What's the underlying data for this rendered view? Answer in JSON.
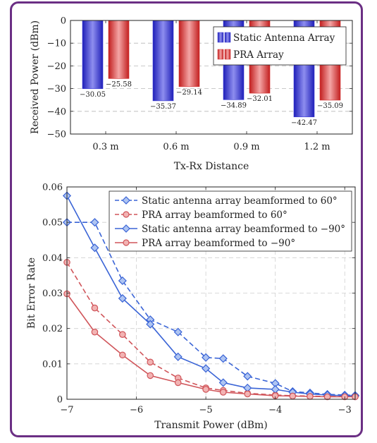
{
  "chart_data": [
    {
      "type": "bar",
      "categories": [
        "0.3 m",
        "0.6 m",
        "0.9 m",
        "1.2 m"
      ],
      "series": [
        {
          "name": "Static Antenna Array",
          "values": [
            -30.05,
            -35.37,
            -34.89,
            -42.47
          ],
          "labels": [
            "−30.05",
            "−35.37",
            "−34.89",
            "−42.47"
          ],
          "color": "#3b3bd6"
        },
        {
          "name": "PRA Array",
          "values": [
            -25.58,
            -29.14,
            -32.01,
            -35.09
          ],
          "labels": [
            "−25.58",
            "−29.14",
            "−32.01",
            "−35.09"
          ],
          "color": "#d42f2f"
        }
      ],
      "xlabel": "Tx-Rx Distance",
      "ylabel": "Received Power (dBm)",
      "ylim": [
        -50,
        0
      ],
      "yticks": [
        0,
        -10,
        -20,
        -30,
        -40,
        -50
      ],
      "ytick_labels": [
        "0",
        "−10",
        "−20",
        "−30",
        "−40",
        "−50"
      ],
      "grid": "horizontal dashed",
      "legend": "top-right"
    },
    {
      "type": "line",
      "series": [
        {
          "name": "Static antenna array beamformed to 60°",
          "color": "#3a64d6",
          "dash": true,
          "marker": "diamond",
          "x": [
            -7,
            -6.6,
            -6.2,
            -5.8,
            -5.4,
            -5.0,
            -4.75,
            -4.4,
            -4.0,
            -3.75,
            -3.5,
            -3.25,
            -3.0,
            -2.85
          ],
          "y": [
            0.05,
            0.05,
            0.0335,
            0.0225,
            0.019,
            0.0118,
            0.0115,
            0.0065,
            0.0045,
            0.0022,
            0.0018,
            0.0014,
            0.0012,
            0.0011
          ]
        },
        {
          "name": "PRA array beamformed to 60°",
          "color": "#d0555a",
          "dash": true,
          "marker": "circle",
          "x": [
            -7,
            -6.6,
            -6.2,
            -5.8,
            -5.4,
            -5.0,
            -4.75,
            -4.4,
            -4.0,
            -3.75,
            -3.5,
            -3.25,
            -3.0,
            -2.85
          ],
          "y": [
            0.0387,
            0.0258,
            0.0183,
            0.0105,
            0.006,
            0.0032,
            0.0025,
            0.0017,
            0.0012,
            0.001,
            0.0009,
            0.0008,
            0.0008,
            0.0008
          ]
        },
        {
          "name": "Static antenna array beamformed to −90°",
          "color": "#3a64d6",
          "dash": false,
          "marker": "diamond",
          "x": [
            -7,
            -6.6,
            -6.2,
            -5.8,
            -5.4,
            -5.0,
            -4.75,
            -4.4,
            -4.0,
            -3.75,
            -3.5,
            -3.25,
            -3.0,
            -2.85
          ],
          "y": [
            0.0575,
            0.0428,
            0.0285,
            0.0212,
            0.012,
            0.0087,
            0.0047,
            0.0032,
            0.0028,
            0.002,
            0.0015,
            0.0012,
            0.001,
            0.0009
          ]
        },
        {
          "name": "PRA array beamformed to −90°",
          "color": "#d0555a",
          "dash": false,
          "marker": "circle",
          "x": [
            -7,
            -6.6,
            -6.2,
            -5.8,
            -5.4,
            -5.0,
            -4.75,
            -4.4,
            -4.0,
            -3.75,
            -3.5,
            -3.25,
            -3.0,
            -2.85
          ],
          "y": [
            0.0298,
            0.019,
            0.0125,
            0.0067,
            0.0047,
            0.0028,
            0.002,
            0.0015,
            0.001,
            0.0009,
            0.0008,
            0.0007,
            0.0007,
            0.0007
          ]
        }
      ],
      "xlabel": "Transmit Power (dBm)",
      "ylabel": "Bit Error Rate",
      "xlim": [
        -7,
        -2.85
      ],
      "ylim": [
        0,
        0.06
      ],
      "xticks": [
        -7,
        -6,
        -5,
        -4,
        -3
      ],
      "xtick_labels": [
        "−7",
        "−6",
        "−5",
        "−4",
        "−3"
      ],
      "yticks": [
        0,
        0.01,
        0.02,
        0.03,
        0.04,
        0.05,
        0.06
      ],
      "ytick_labels": [
        "0",
        "0.01",
        "0.02",
        "0.03",
        "0.04",
        "0.05",
        "0.06"
      ],
      "grid": "dashed",
      "legend": "top-right"
    }
  ]
}
